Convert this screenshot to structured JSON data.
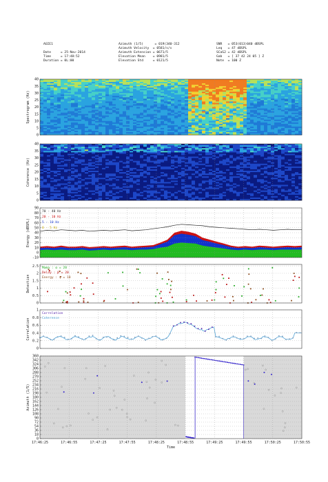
{
  "header": {
    "left": [
      "AGIE1",
      "",
      "Date     = 25-Nov-2014",
      "Time     = 17:48:52",
      "Duration = 0L:00"
    ],
    "mid": [
      "Azimuth (1/5)      = 019(340-312",
      "Azimuth Velocity  = 0581/s/s",
      "Azimuth Extension = 0671/5",
      "Elevation Mean    = 0981/5",
      "Elevation Std     = 0121/5"
    ],
    "right": [
      "SNR   = 053(013)040 dBSPL",
      "Leq   = 47 dBSPL",
      "SCaS2 = 42 dBSPL",
      "Gab   = [ 37 42 24 05 ] Z",
      "Note  = 100 Z"
    ]
  },
  "colors": {
    "spectrogram_base": "#1f6fd1",
    "coherence_base": "#0a1f8f",
    "energy_70_40": "#222222",
    "energy_20_10": "#cc1111",
    "energy_10": "#1133cc",
    "energy_5": "#22bb22",
    "energy_0_5": "#e6c200",
    "detection_alpha": "#22aa22",
    "detection_beta": "#bb1111",
    "detection_gamma": "#8b4a1a",
    "correlation": "#5522aa",
    "coherence_line": "#4fa3d8",
    "azimuth_point": "#9a9a9a",
    "azimuth_detect": "#3322cc",
    "azimuth_bg": "#d9d9d9"
  },
  "chart_data": [
    {
      "type": "heatmap",
      "panel": "spectrogram",
      "ylabel": "Spectrogram (Hz)",
      "yticks": [
        0,
        5,
        10,
        15,
        20,
        25,
        30,
        35,
        40
      ],
      "ylim": [
        0,
        40
      ],
      "intense_window": [
        "17:48:55",
        "17:49:55"
      ]
    },
    {
      "type": "heatmap",
      "panel": "coherence",
      "ylabel": "Coherence (Hz)",
      "yticks": [
        0,
        5,
        10,
        15,
        20,
        25,
        30,
        35,
        40
      ],
      "ylim": [
        0,
        40
      ],
      "intense_window": [
        "17:48:55",
        "17:49:50"
      ]
    },
    {
      "type": "area",
      "panel": "energy",
      "ylabel": "Energy (dBSPL)",
      "yticks": [
        -10,
        0,
        10,
        20,
        30,
        40,
        50,
        60,
        70,
        80,
        90
      ],
      "ylim": [
        -10,
        90
      ],
      "legend": [
        "70 - 40 Hz",
        "20 - 10 Hz",
        "5 - 10 Hz",
        "0 - 5 Hz"
      ],
      "series": [
        {
          "name": "70 - 40 Hz",
          "values": [
            43,
            45,
            44,
            46,
            45,
            44,
            45,
            43,
            44,
            45,
            44,
            45,
            46,
            44,
            45,
            46,
            48,
            50,
            52,
            55,
            57,
            56,
            55,
            54,
            52,
            51,
            50,
            49,
            48,
            47,
            46,
            47,
            46,
            45,
            46,
            47,
            46,
            46
          ]
        },
        {
          "name": "20 - 10 Hz",
          "values": [
            12,
            13,
            12,
            14,
            12,
            12,
            13,
            11,
            12,
            13,
            12,
            13,
            14,
            12,
            13,
            14,
            15,
            20,
            26,
            40,
            44,
            42,
            38,
            30,
            26,
            22,
            18,
            14,
            12,
            13,
            12,
            14,
            13,
            12,
            13,
            14,
            13,
            14
          ]
        },
        {
          "name": "5 - 10 Hz",
          "values": [
            9,
            10,
            9,
            11,
            9,
            9,
            10,
            8,
            9,
            10,
            9,
            10,
            11,
            9,
            10,
            11,
            12,
            17,
            22,
            35,
            38,
            36,
            33,
            25,
            22,
            18,
            15,
            11,
            9,
            10,
            9,
            11,
            10,
            9,
            10,
            11,
            10,
            11
          ]
        },
        {
          "name": "0 - 5 Hz",
          "values": [
            5,
            6,
            5,
            6,
            5,
            5,
            6,
            4,
            5,
            6,
            5,
            6,
            6,
            5,
            6,
            6,
            7,
            10,
            12,
            18,
            20,
            19,
            18,
            14,
            12,
            10,
            8,
            6,
            5,
            6,
            5,
            6,
            6,
            5,
            6,
            6,
            6,
            6
          ]
        }
      ]
    },
    {
      "type": "scatter",
      "panel": "detection",
      "ylabel": "Detection",
      "yticks": [
        0,
        0.5,
        1,
        1.5,
        2,
        2.5
      ],
      "ylim": [
        0,
        2.6
      ],
      "legend": [
        "Mama  : α = 20",
        "Delay : β = 20",
        "Energy : γ = 10"
      ]
    },
    {
      "type": "line",
      "panel": "correlation",
      "ylabel": "Correlation",
      "yticks": [
        0,
        0.2,
        0.4,
        0.6,
        0.8,
        1
      ],
      "ylim": [
        0,
        1
      ],
      "legend": [
        "Correlation",
        "Coherence"
      ]
    },
    {
      "type": "scatter",
      "panel": "azimuth",
      "ylabel": "Azimuth (1/5)",
      "xlabel": "Time",
      "yticks": [
        0,
        18,
        36,
        54,
        72,
        90,
        108,
        126,
        144,
        162,
        180,
        198,
        216,
        234,
        252,
        270,
        288,
        306,
        324,
        342,
        360
      ],
      "ylim": [
        0,
        360
      ],
      "xticks": [
        "17:46:25",
        "17:46:55",
        "17:47:25",
        "17:47:55",
        "17:48:25",
        "17:48:55",
        "17:49:25",
        "17:49:55",
        "17:50:25",
        "17:50:55"
      ],
      "detect_window": [
        "17:48:55",
        "17:49:55"
      ],
      "detect_start": 355,
      "detect_end": 321
    }
  ]
}
